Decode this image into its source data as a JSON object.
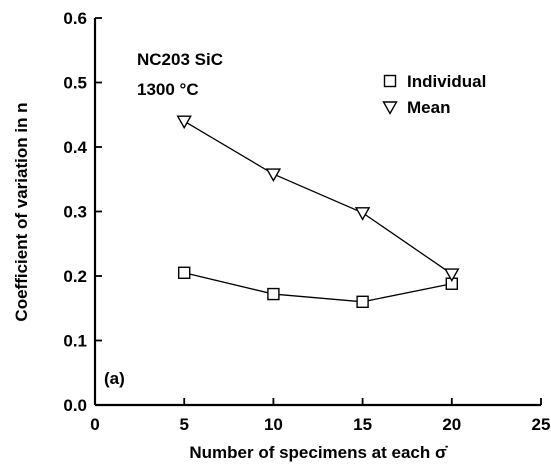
{
  "chart_data": {
    "type": "line",
    "xlabel": "Number of specimens at each σ̇",
    "ylabel": "Coefficient of variation in n",
    "xlim": [
      0,
      25
    ],
    "ylim": [
      0.0,
      0.6
    ],
    "xticks": [
      "0",
      "5",
      "10",
      "15",
      "20",
      "25"
    ],
    "yticks": [
      "0.0",
      "0.1",
      "0.2",
      "0.3",
      "0.4",
      "0.5",
      "0.6"
    ],
    "grid": false,
    "legend_position": "top-right",
    "annotations": {
      "material": "NC203 SiC",
      "temperature": "1300 °C",
      "panel": "(a)"
    },
    "series": [
      {
        "name": "Individual",
        "marker": "square",
        "x": [
          5,
          10,
          15,
          20
        ],
        "y": [
          0.205,
          0.172,
          0.16,
          0.188
        ]
      },
      {
        "name": "Mean",
        "marker": "triangle-down",
        "x": [
          5,
          10,
          15,
          20
        ],
        "y": [
          0.44,
          0.358,
          0.298,
          0.203
        ]
      }
    ]
  }
}
